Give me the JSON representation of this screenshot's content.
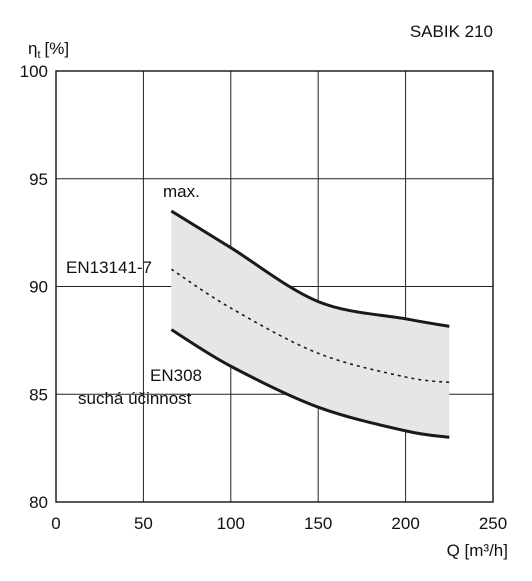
{
  "chart_data": {
    "type": "area",
    "title": "SABIK 210",
    "ylabel": "[%]",
    "ylabel_symbol": "η",
    "ylabel_sub": "t",
    "xlabel": "Q [m³/h]",
    "xlim": [
      0,
      250
    ],
    "ylim": [
      80,
      100
    ],
    "xticks": [
      0,
      50,
      100,
      150,
      200,
      250
    ],
    "yticks": [
      80,
      85,
      90,
      95,
      100
    ],
    "grid": true,
    "band_color": "#e6e6e6",
    "line_color": "#1a1a1a",
    "series": [
      {
        "name": "max.",
        "style": "solid",
        "x": [
          66,
          100,
          150,
          200,
          225
        ],
        "y": [
          93.5,
          91.8,
          89.3,
          88.5,
          88.15
        ]
      },
      {
        "name": "EN13141-7",
        "style": "dashed",
        "x": [
          66,
          100,
          150,
          200,
          225
        ],
        "y": [
          90.8,
          89.0,
          86.9,
          85.8,
          85.55
        ]
      },
      {
        "name": "EN308 suchá účinnost",
        "style": "solid",
        "x": [
          66,
          100,
          150,
          200,
          225
        ],
        "y": [
          88.0,
          86.3,
          84.4,
          83.3,
          83.0
        ]
      }
    ],
    "annotations": {
      "max": "max.",
      "en13141": "EN13141-7",
      "en308_line1": "EN308",
      "en308_line2": "suchá účinnost"
    }
  }
}
